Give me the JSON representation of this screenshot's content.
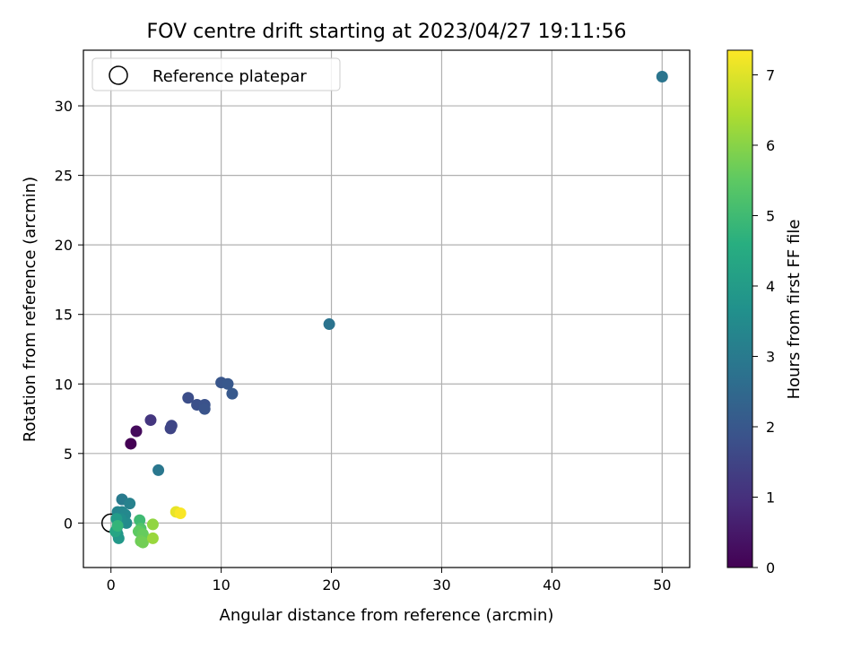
{
  "chart_data": {
    "type": "scatter",
    "title": "FOV centre drift starting at 2023/04/27 19:11:56",
    "xlabel": "Angular distance from reference (arcmin)",
    "ylabel": "Rotation from reference (arcmin)",
    "xlim": [
      -2.5,
      52.5
    ],
    "ylim": [
      -3.2,
      34
    ],
    "xticks": [
      0,
      10,
      20,
      30,
      40,
      50
    ],
    "yticks": [
      0,
      5,
      10,
      15,
      20,
      25,
      30
    ],
    "grid": true,
    "legend": {
      "placement": "top-left",
      "entries": [
        "Reference platepar"
      ]
    },
    "reference_point": {
      "x": 0,
      "y": 0
    },
    "colorbar": {
      "label": "Hours from first FF file",
      "range": [
        0,
        7.35
      ],
      "ticks": [
        0,
        1,
        2,
        3,
        4,
        5,
        6,
        7
      ],
      "colormap": "viridis"
    },
    "points": [
      {
        "x": 1.8,
        "y": 5.7,
        "t": 0.0
      },
      {
        "x": 2.3,
        "y": 6.6,
        "t": 0.2
      },
      {
        "x": 3.6,
        "y": 7.4,
        "t": 1.15
      },
      {
        "x": 5.4,
        "y": 6.8,
        "t": 1.5
      },
      {
        "x": 5.5,
        "y": 7.0,
        "t": 1.55
      },
      {
        "x": 7.0,
        "y": 9.0,
        "t": 1.75
      },
      {
        "x": 7.8,
        "y": 8.5,
        "t": 1.8
      },
      {
        "x": 8.5,
        "y": 8.5,
        "t": 1.85
      },
      {
        "x": 8.5,
        "y": 8.2,
        "t": 1.9
      },
      {
        "x": 10.0,
        "y": 10.1,
        "t": 1.95
      },
      {
        "x": 10.6,
        "y": 10.0,
        "t": 2.0
      },
      {
        "x": 11.0,
        "y": 9.3,
        "t": 2.05
      },
      {
        "x": 19.8,
        "y": 14.3,
        "t": 2.8
      },
      {
        "x": 50.0,
        "y": 32.1,
        "t": 2.85
      },
      {
        "x": 4.3,
        "y": 3.8,
        "t": 2.9
      },
      {
        "x": 1.0,
        "y": 1.7,
        "t": 3.0
      },
      {
        "x": 1.7,
        "y": 1.4,
        "t": 3.2
      },
      {
        "x": 0.6,
        "y": 0.8,
        "t": 3.3
      },
      {
        "x": 1.0,
        "y": 0.8,
        "t": 3.35
      },
      {
        "x": 1.3,
        "y": 0.6,
        "t": 3.4
      },
      {
        "x": 1.4,
        "y": 0.0,
        "t": 3.5
      },
      {
        "x": 0.9,
        "y": 0.3,
        "t": 3.55
      },
      {
        "x": 0.5,
        "y": -0.5,
        "t": 3.7
      },
      {
        "x": 0.6,
        "y": -0.8,
        "t": 3.8
      },
      {
        "x": 0.7,
        "y": -1.1,
        "t": 3.9
      },
      {
        "x": 0.5,
        "y": 0.3,
        "t": 4.0
      },
      {
        "x": 0.4,
        "y": -0.6,
        "t": 4.3
      },
      {
        "x": 0.6,
        "y": -0.2,
        "t": 4.8
      },
      {
        "x": 2.6,
        "y": 0.2,
        "t": 5.0
      },
      {
        "x": 2.7,
        "y": -0.4,
        "t": 5.3
      },
      {
        "x": 2.5,
        "y": -0.6,
        "t": 5.5
      },
      {
        "x": 2.9,
        "y": -0.8,
        "t": 5.6
      },
      {
        "x": 2.7,
        "y": -1.3,
        "t": 5.7
      },
      {
        "x": 2.9,
        "y": -1.4,
        "t": 5.75
      },
      {
        "x": 3.8,
        "y": -0.1,
        "t": 6.1
      },
      {
        "x": 3.8,
        "y": -1.1,
        "t": 6.2
      },
      {
        "x": 5.9,
        "y": 0.8,
        "t": 7.1
      },
      {
        "x": 6.3,
        "y": 0.7,
        "t": 7.3
      }
    ]
  }
}
